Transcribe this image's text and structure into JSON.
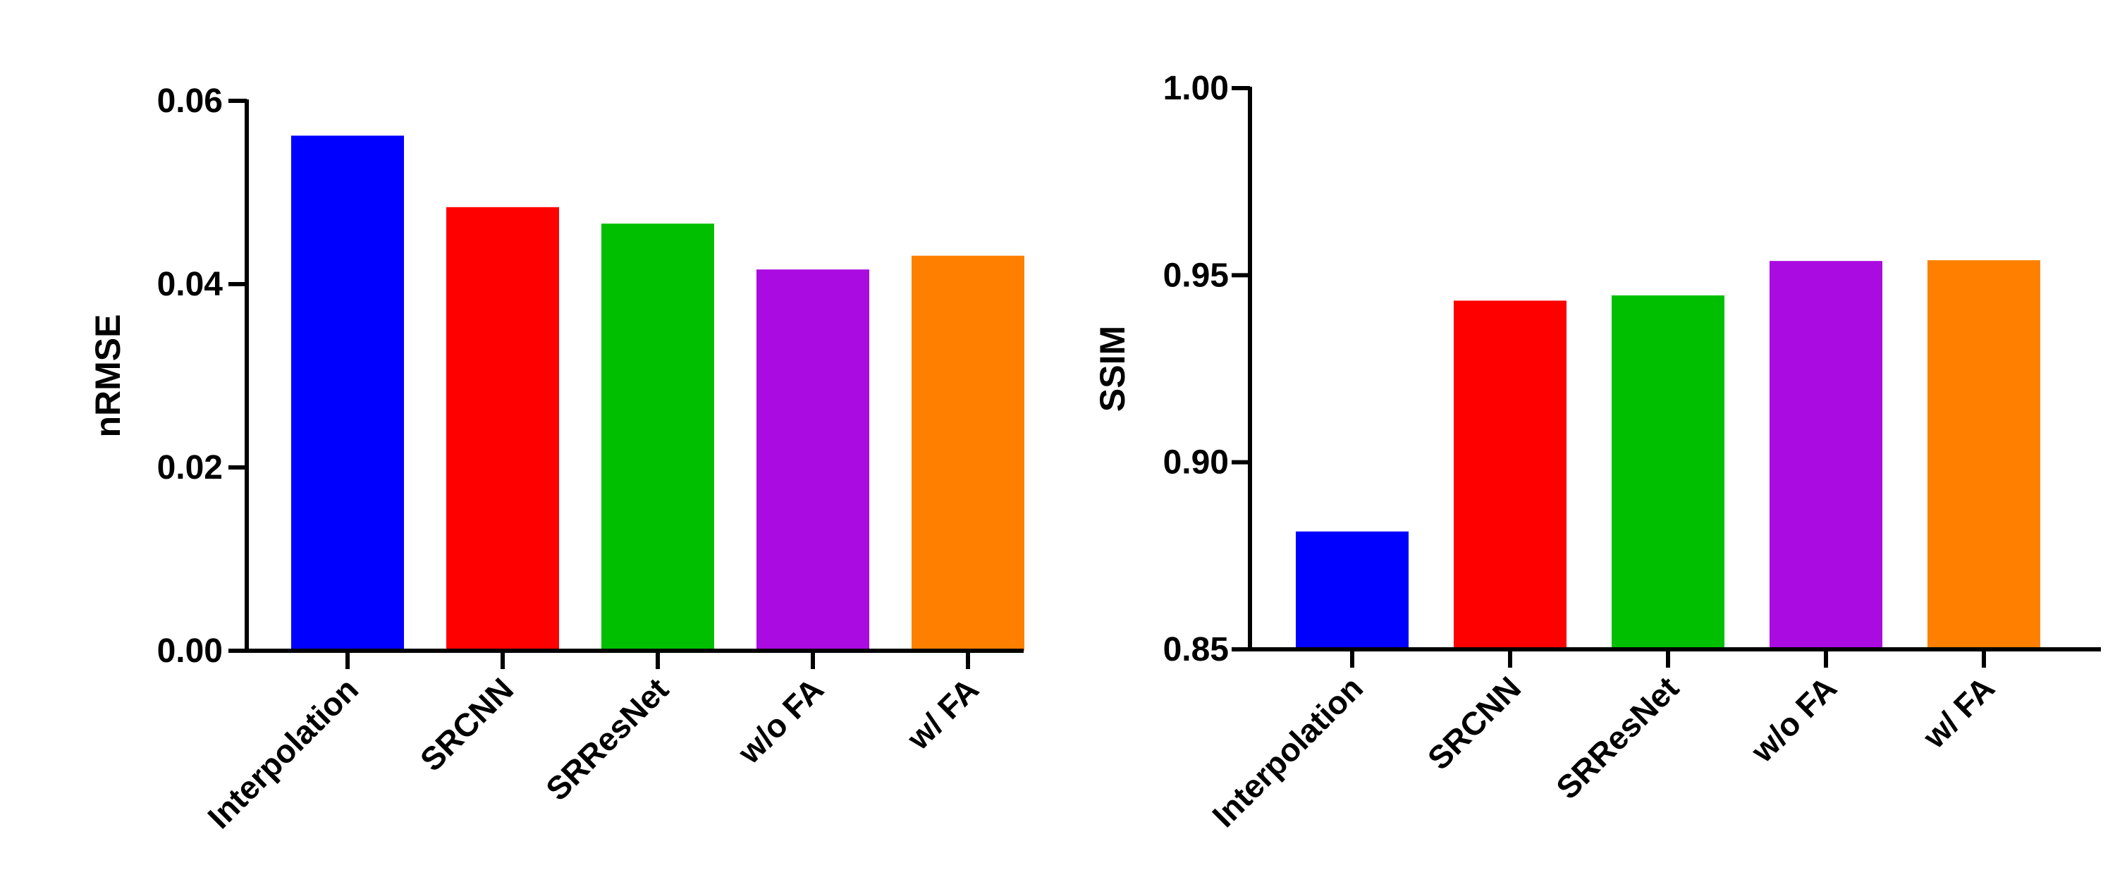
{
  "chart_data": [
    {
      "type": "bar",
      "categories": [
        "Interpolation",
        "SRCNN",
        "SRResNet",
        "w/o FA",
        "w/ FA"
      ],
      "values": [
        0.0562,
        0.0484,
        0.0466,
        0.0416,
        0.0431
      ],
      "colors": [
        "#0000ff",
        "#ff0000",
        "#00bf00",
        "#aa0be0",
        "#ff7f00"
      ],
      "title": "",
      "xlabel": "",
      "ylabel": "nRMSE",
      "ylim": [
        0,
        0.06
      ],
      "yticks": [
        "0.00",
        "0.02",
        "0.04",
        "0.06"
      ],
      "grid": false
    },
    {
      "type": "bar",
      "categories": [
        "Interpolation",
        "SRCNN",
        "SRResNet",
        "w/o FA",
        "w/ FA"
      ],
      "values": [
        0.8815,
        0.9432,
        0.9446,
        0.9538,
        0.954
      ],
      "colors": [
        "#0000ff",
        "#ff0000",
        "#00bf00",
        "#aa0be0",
        "#ff7f00"
      ],
      "title": "",
      "xlabel": "",
      "ylabel": "SSIM",
      "ylim": [
        0.85,
        1.0
      ],
      "yticks": [
        "0.85",
        "0.90",
        "0.95",
        "1.00"
      ],
      "grid": false
    }
  ]
}
